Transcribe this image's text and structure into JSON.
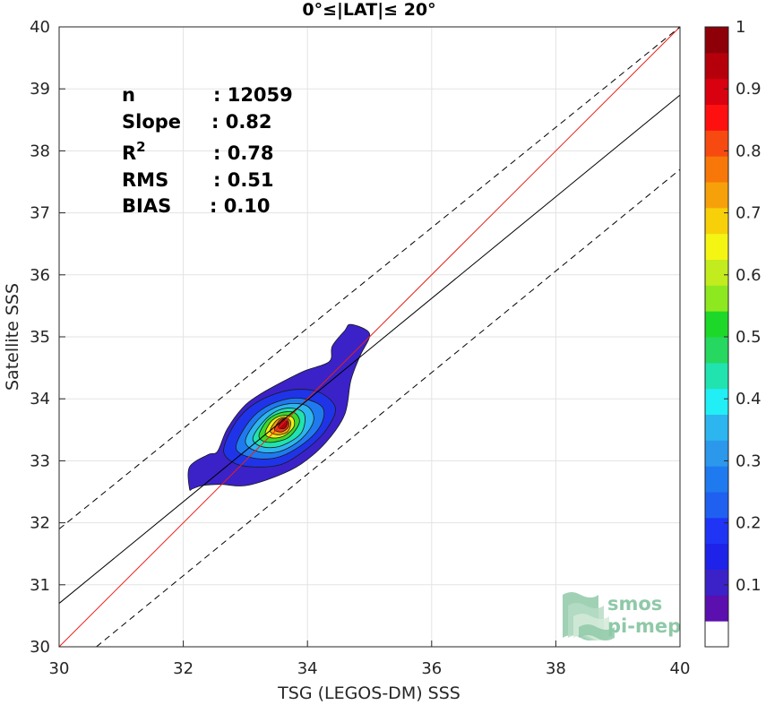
{
  "chart_data": {
    "type": "contour",
    "title": "0°≤|LAT|≤ 20°",
    "xlabel": "TSG (LEGOS-DM) SSS",
    "ylabel": "Satellite SSS",
    "xlim": [
      30,
      40
    ],
    "ylim": [
      30,
      40
    ],
    "xticks": [
      "30",
      "32",
      "34",
      "36",
      "38",
      "40"
    ],
    "yticks": [
      "30",
      "31",
      "32",
      "33",
      "34",
      "35",
      "36",
      "37",
      "38",
      "39",
      "40"
    ],
    "grid": true,
    "stats": [
      {
        "label": "n",
        "sep": ":",
        "value": "12059"
      },
      {
        "label": "Slope",
        "sep": ":",
        "value": "0.82"
      },
      {
        "label": "R",
        "sup": "2",
        "sep": ":",
        "value": "0.78"
      },
      {
        "label": "RMS",
        "sep": ":",
        "value": "0.51"
      },
      {
        "label": "BIAS",
        "sep": ":",
        "value": "0.10"
      }
    ],
    "lines": [
      {
        "name": "identity",
        "color": "#e8211a",
        "style": "solid",
        "points": [
          [
            30,
            30
          ],
          [
            40,
            40
          ]
        ]
      },
      {
        "name": "regression",
        "color": "#000000",
        "style": "solid",
        "points": [
          [
            30,
            30.7
          ],
          [
            40,
            38.9
          ]
        ]
      },
      {
        "name": "upper-bound",
        "color": "#000000",
        "style": "dashed",
        "points": [
          [
            30,
            31.9
          ],
          [
            40,
            40.0
          ]
        ]
      },
      {
        "name": "lower-bound",
        "color": "#000000",
        "style": "dashed",
        "points": [
          [
            30.6,
            30
          ],
          [
            40,
            37.7
          ]
        ]
      }
    ],
    "density_center": [
      33.62,
      33.65
    ],
    "contour_levels": [
      {
        "level": 0.05,
        "color": "#3a22c8",
        "polygon": [
          [
            32.1,
            32.55
          ],
          [
            32.1,
            32.9
          ],
          [
            32.4,
            33.1
          ],
          [
            32.55,
            33.15
          ],
          [
            32.7,
            33.5
          ],
          [
            32.95,
            33.85
          ],
          [
            33.2,
            34.05
          ],
          [
            33.55,
            34.25
          ],
          [
            33.95,
            34.45
          ],
          [
            34.35,
            34.6
          ],
          [
            34.4,
            34.85
          ],
          [
            34.6,
            35.1
          ],
          [
            34.7,
            35.2
          ],
          [
            35.0,
            35.05
          ],
          [
            34.85,
            34.7
          ],
          [
            34.7,
            34.3
          ],
          [
            34.6,
            33.75
          ],
          [
            34.3,
            33.3
          ],
          [
            33.9,
            32.95
          ],
          [
            33.5,
            32.75
          ],
          [
            33.0,
            32.6
          ],
          [
            32.6,
            32.62
          ],
          [
            32.3,
            32.6
          ],
          [
            32.15,
            32.55
          ]
        ]
      },
      {
        "level": 0.15,
        "color": "#1f34e8",
        "polygon": [
          [
            32.65,
            33.15
          ],
          [
            32.8,
            33.55
          ],
          [
            33.05,
            33.85
          ],
          [
            33.4,
            34.05
          ],
          [
            33.8,
            34.15
          ],
          [
            34.2,
            34.1
          ],
          [
            34.45,
            33.85
          ],
          [
            34.3,
            33.5
          ],
          [
            34.0,
            33.2
          ],
          [
            33.6,
            32.95
          ],
          [
            33.2,
            32.9
          ],
          [
            32.85,
            32.95
          ]
        ]
      },
      {
        "level": 0.25,
        "color": "#1f7af0",
        "polygon": [
          [
            32.85,
            33.2
          ],
          [
            33.0,
            33.55
          ],
          [
            33.25,
            33.82
          ],
          [
            33.6,
            33.98
          ],
          [
            33.95,
            34.0
          ],
          [
            34.25,
            33.85
          ],
          [
            34.2,
            33.55
          ],
          [
            33.9,
            33.25
          ],
          [
            33.5,
            33.05
          ],
          [
            33.1,
            33.05
          ]
        ]
      },
      {
        "level": 0.35,
        "color": "#2cb5ee",
        "polygon": [
          [
            33.0,
            33.3
          ],
          [
            33.15,
            33.6
          ],
          [
            33.4,
            33.82
          ],
          [
            33.7,
            33.92
          ],
          [
            34.0,
            33.88
          ],
          [
            34.1,
            33.65
          ],
          [
            33.9,
            33.35
          ],
          [
            33.55,
            33.15
          ],
          [
            33.2,
            33.15
          ]
        ]
      },
      {
        "level": 0.45,
        "color": "#20e3b0",
        "polygon": [
          [
            33.12,
            33.35
          ],
          [
            33.28,
            33.62
          ],
          [
            33.5,
            33.8
          ],
          [
            33.75,
            33.85
          ],
          [
            33.95,
            33.75
          ],
          [
            33.9,
            33.45
          ],
          [
            33.6,
            33.25
          ],
          [
            33.3,
            33.22
          ]
        ]
      },
      {
        "level": 0.55,
        "color": "#3ed82a",
        "polygon": [
          [
            33.22,
            33.42
          ],
          [
            33.35,
            33.65
          ],
          [
            33.55,
            33.77
          ],
          [
            33.78,
            33.78
          ],
          [
            33.87,
            33.62
          ],
          [
            33.7,
            33.38
          ],
          [
            33.45,
            33.3
          ],
          [
            33.28,
            33.32
          ]
        ]
      },
      {
        "level": 0.65,
        "color": "#f0ee14",
        "polygon": [
          [
            33.32,
            33.45
          ],
          [
            33.43,
            33.65
          ],
          [
            33.6,
            33.73
          ],
          [
            33.76,
            33.7
          ],
          [
            33.78,
            33.55
          ],
          [
            33.62,
            33.4
          ],
          [
            33.42,
            33.37
          ]
        ]
      },
      {
        "level": 0.75,
        "color": "#f7a10a",
        "polygon": [
          [
            33.4,
            33.48
          ],
          [
            33.5,
            33.65
          ],
          [
            33.64,
            33.7
          ],
          [
            33.73,
            33.62
          ],
          [
            33.68,
            33.47
          ],
          [
            33.52,
            33.42
          ]
        ]
      },
      {
        "level": 0.85,
        "color": "#f03a12",
        "polygon": [
          [
            33.47,
            33.52
          ],
          [
            33.56,
            33.66
          ],
          [
            33.67,
            33.67
          ],
          [
            33.7,
            33.56
          ],
          [
            33.6,
            33.47
          ],
          [
            33.5,
            33.48
          ]
        ]
      },
      {
        "level": 0.95,
        "color": "#b5000c",
        "polygon": [
          [
            33.53,
            33.55
          ],
          [
            33.6,
            33.66
          ],
          [
            33.68,
            33.62
          ],
          [
            33.64,
            33.53
          ],
          [
            33.57,
            33.52
          ]
        ]
      }
    ],
    "colorbar": {
      "colors": [
        "#ffffff",
        "#5a0fae",
        "#3a22c8",
        "#1f22e8",
        "#1f34f5",
        "#1f60f0",
        "#1f7af0",
        "#2c98ec",
        "#2cb5ee",
        "#22eef5",
        "#20e3b0",
        "#26d860",
        "#1ed829",
        "#8ee820",
        "#c2ec1e",
        "#f5f514",
        "#f7d00a",
        "#f7a10a",
        "#f77808",
        "#f74a10",
        "#ff1010",
        "#d90010",
        "#b5000c",
        "#8e0008"
      ],
      "ticks": [
        "0.1",
        "0.2",
        "0.3",
        "0.4",
        "0.5",
        "0.6",
        "0.7",
        "0.8",
        "0.9",
        "1"
      ],
      "range": [
        0,
        1
      ]
    },
    "logo": {
      "lines": [
        "smos",
        "pi-mep"
      ],
      "colors": [
        "#8fc9a8",
        "#b6dcc4",
        "#d3ead9"
      ]
    }
  }
}
